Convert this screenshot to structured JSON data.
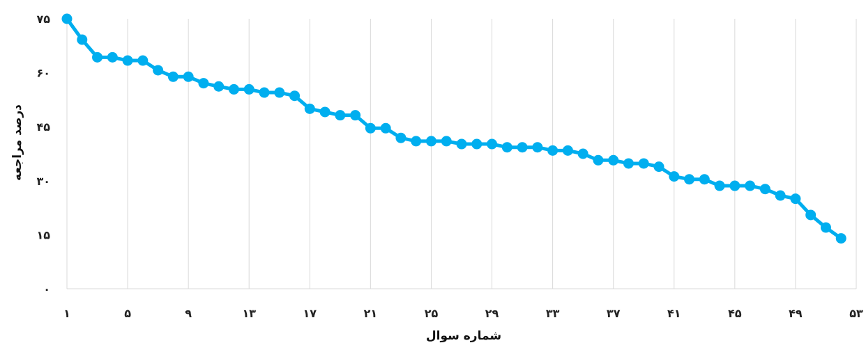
{
  "chart_data": {
    "type": "line",
    "xlabel": "شماره سوال",
    "ylabel": "درصد مراجعه",
    "xlim": [
      1,
      53
    ],
    "ylim": [
      0,
      75
    ],
    "yticks": [
      0,
      15,
      30,
      45,
      60,
      75
    ],
    "ytick_labels": [
      "۰",
      "۱۵",
      "۳۰",
      "۴۵",
      "۶۰",
      "۷۵"
    ],
    "xticks": [
      1,
      5,
      9,
      13,
      17,
      21,
      25,
      29,
      33,
      37,
      41,
      45,
      49,
      53
    ],
    "xtick_labels": [
      "۱",
      "۵",
      "۹",
      "۱۳",
      "۱۷",
      "۲۱",
      "۲۵",
      "۲۹",
      "۳۳",
      "۳۷",
      "۴۱",
      "۴۵",
      "۴۹",
      "۵۳"
    ],
    "grid": "vertical",
    "legend": "none",
    "color": "#00aeef",
    "series": [
      {
        "x": [
          1,
          2,
          3,
          4,
          5,
          6,
          7,
          8,
          9,
          10,
          11,
          12,
          13,
          14,
          15,
          16,
          17,
          18,
          19,
          20,
          21,
          22,
          23,
          24,
          25,
          26,
          27,
          28,
          29,
          30,
          31,
          32,
          33,
          34,
          35,
          36,
          37,
          38,
          39,
          40,
          41,
          42,
          43,
          44,
          45,
          46,
          47,
          48,
          49,
          50,
          51,
          52
        ],
        "values": [
          75,
          69.2,
          64.3,
          64.3,
          63.4,
          63.4,
          60.7,
          58.9,
          58.9,
          57.1,
          56.2,
          55.4,
          55.4,
          54.5,
          54.5,
          53.6,
          50,
          49.1,
          48.2,
          48.2,
          44.6,
          44.6,
          41.9,
          41,
          41,
          41,
          40.2,
          40.2,
          40.2,
          39.3,
          39.3,
          39.3,
          38.4,
          38.4,
          37.5,
          35.7,
          35.7,
          34.8,
          34.8,
          33.9,
          31.2,
          30.4,
          30.4,
          28.6,
          28.6,
          28.6,
          27.7,
          25.9,
          25,
          20.5,
          17,
          14
        ]
      }
    ]
  }
}
